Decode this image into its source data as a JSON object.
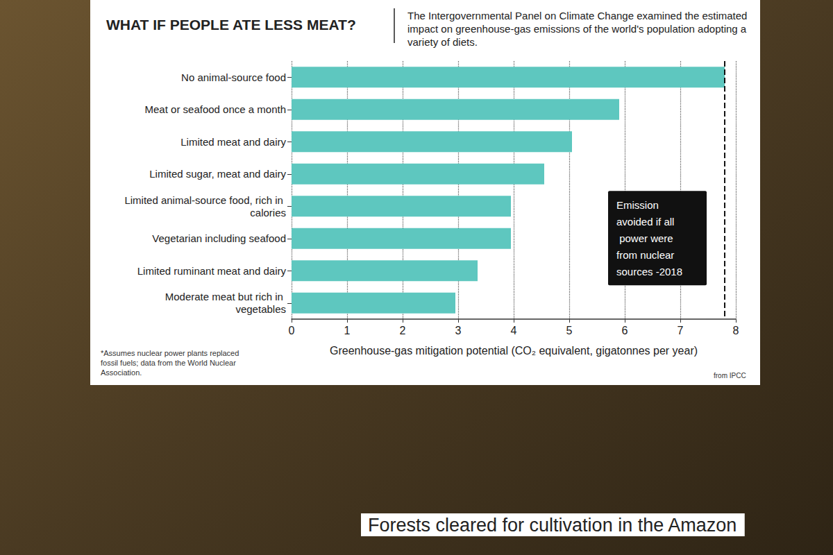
{
  "chart_data": {
    "type": "bar",
    "orientation": "horizontal",
    "title": "WHAT IF PEOPLE ATE LESS MEAT?",
    "subtitle": "The Intergovernmental Panel on Climate Change examined the estimated impact on greenhouse-gas emissions of the world's population adopting a variety of diets.",
    "categories": [
      "No animal-source food",
      "Meat or seafood once a month",
      "Limited meat and dairy",
      "Limited sugar, meat and dairy",
      "Limited animal-source food, rich in calories",
      "Vegetarian including seafood",
      "Limited ruminant meat and dairy",
      "Moderate meat but rich in vegetables"
    ],
    "values": [
      7.8,
      5.9,
      5.05,
      4.55,
      3.95,
      3.95,
      3.35,
      2.95
    ],
    "color": "#5ec7bf",
    "xlabel": "Greenhouse-gas mitigation potential (CO₂ equivalent, gigatonnes per year)",
    "xlim": [
      0,
      8
    ],
    "xticks": [
      0,
      1,
      2,
      3,
      4,
      5,
      6,
      7,
      8
    ],
    "grid": true,
    "annotations": [
      {
        "x": 7.8,
        "text": "Emission avoided if all power were from nuclear sources -2018"
      }
    ],
    "footnote": "*Assumes nuclear power plants replaced fossil fuels; data from the World Nuclear Association.",
    "source": "from IPCC",
    "caption": "Forests cleared for cultivation in the Amazon"
  }
}
